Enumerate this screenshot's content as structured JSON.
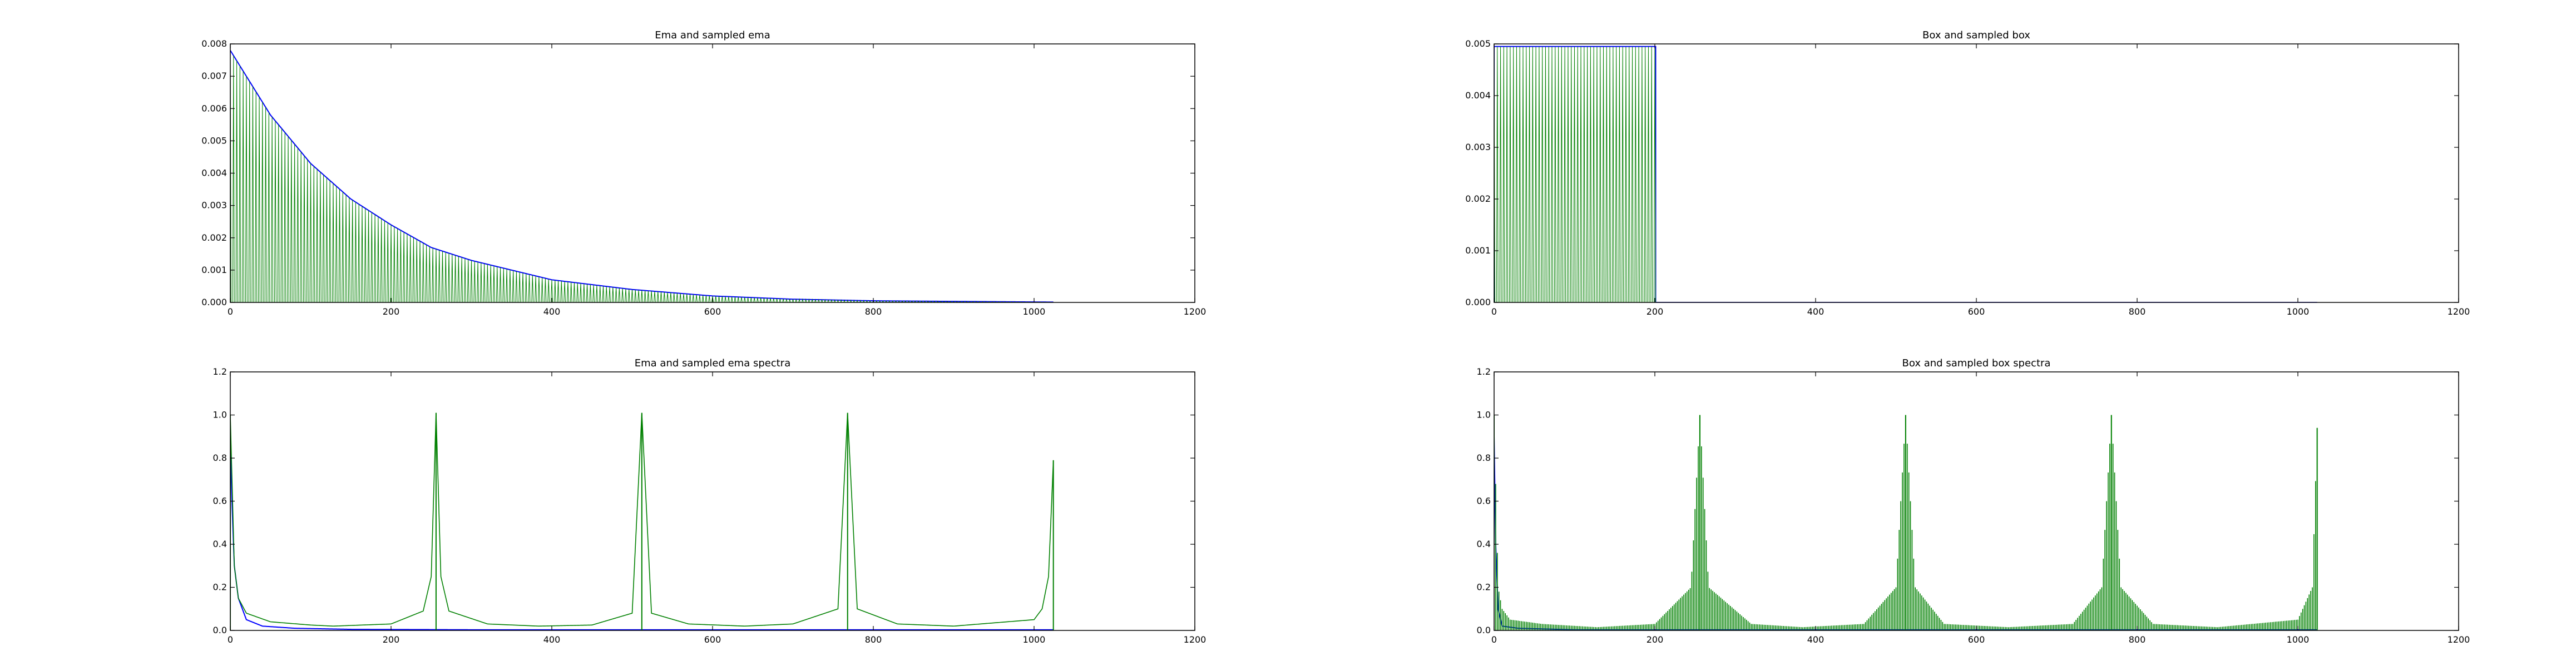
{
  "colors": {
    "sampled": "#008000",
    "continuous": "#0000ff",
    "axes": "#000000",
    "background": "#ffffff"
  },
  "chart_data": [
    {
      "id": "ema",
      "type": "line",
      "title": "Ema and sampled ema",
      "xlabel": "",
      "ylabel": "",
      "xlim": [
        0,
        1200
      ],
      "ylim": [
        0,
        0.008
      ],
      "xticks": [
        "0",
        "200",
        "400",
        "600",
        "800",
        "1000",
        "1200"
      ],
      "yticks": [
        "0.000",
        "0.001",
        "0.002",
        "0.003",
        "0.004",
        "0.005",
        "0.006",
        "0.007",
        "0.008"
      ],
      "grid": false,
      "series": [
        {
          "style": "continuous",
          "color": "#0000ff",
          "x": [
            0,
            50,
            100,
            150,
            200,
            250,
            300,
            400,
            500,
            600,
            700,
            800,
            1024
          ],
          "y": [
            0.0078,
            0.0058,
            0.0043,
            0.0032,
            0.0024,
            0.0017,
            0.0013,
            0.0007,
            0.0004,
            0.0002,
            0.0001,
            5e-05,
            1e-05
          ]
        },
        {
          "style": "sampled",
          "color": "#008000",
          "sample_every": 4,
          "x": [
            0,
            50,
            100,
            150,
            200,
            250,
            300,
            400,
            500,
            600,
            700,
            800,
            1024
          ],
          "y": [
            0.0078,
            0.0058,
            0.0043,
            0.0032,
            0.0024,
            0.0017,
            0.0013,
            0.0007,
            0.0004,
            0.0002,
            0.0001,
            5e-05,
            1e-05
          ]
        }
      ]
    },
    {
      "id": "box",
      "type": "line",
      "title": "Box and sampled box",
      "xlabel": "",
      "ylabel": "",
      "xlim": [
        0,
        1200
      ],
      "ylim": [
        0,
        0.005
      ],
      "xticks": [
        "0",
        "200",
        "400",
        "600",
        "800",
        "1000",
        "1200"
      ],
      "yticks": [
        "0.000",
        "0.001",
        "0.002",
        "0.003",
        "0.004",
        "0.005"
      ],
      "grid": false,
      "series": [
        {
          "style": "continuous",
          "color": "#0000ff",
          "x": [
            0,
            0,
            201,
            201,
            1024
          ],
          "y": [
            0,
            0.00495,
            0.00495,
            0,
            0
          ]
        },
        {
          "style": "sampled",
          "color": "#008000",
          "sample_every": 4,
          "x": [
            0,
            200,
            201,
            1024
          ],
          "y": [
            0.00495,
            0.00495,
            0,
            0
          ]
        }
      ]
    },
    {
      "id": "ema_spectra",
      "type": "line",
      "title": "Ema and sampled ema spectra",
      "xlabel": "",
      "ylabel": "",
      "xlim": [
        0,
        1200
      ],
      "ylim": [
        0,
        1.2
      ],
      "xticks": [
        "0",
        "200",
        "400",
        "600",
        "800",
        "1000",
        "1200"
      ],
      "yticks": [
        "0.0",
        "0.2",
        "0.4",
        "0.6",
        "0.8",
        "1.0",
        "1.2"
      ],
      "grid": false,
      "peaks_at": [
        0,
        256,
        512,
        768,
        1024
      ],
      "peak_heights": [
        1.0,
        1.01,
        1.01,
        1.01,
        0.79
      ],
      "series": [
        {
          "style": "continuous",
          "color": "#0000ff",
          "x": [
            0,
            2,
            5,
            10,
            20,
            40,
            80,
            150,
            300,
            512,
            1024
          ],
          "y": [
            0.9,
            0.6,
            0.3,
            0.15,
            0.05,
            0.02,
            0.01,
            0.005,
            0.003,
            0.003,
            0.003
          ]
        },
        {
          "style": "sampled",
          "color": "#008000",
          "x": [
            0,
            5,
            10,
            20,
            50,
            100,
            128,
            200,
            240,
            250,
            256,
            262,
            272,
            320,
            384,
            450,
            500,
            512,
            524,
            570,
            640,
            700,
            756,
            768,
            780,
            830,
            900,
            1000,
            1010,
            1018,
            1024
          ],
          "y": [
            1.0,
            0.3,
            0.15,
            0.08,
            0.04,
            0.025,
            0.02,
            0.03,
            0.09,
            0.25,
            1.01,
            0.25,
            0.09,
            0.03,
            0.02,
            0.025,
            0.08,
            1.01,
            0.08,
            0.03,
            0.02,
            0.03,
            0.1,
            1.01,
            0.1,
            0.03,
            0.02,
            0.05,
            0.1,
            0.25,
            0.79
          ]
        }
      ]
    },
    {
      "id": "box_spectra",
      "type": "line",
      "title": "Box and sampled box spectra",
      "xlabel": "",
      "ylabel": "",
      "xlim": [
        0,
        1200
      ],
      "ylim": [
        0,
        1.2
      ],
      "xticks": [
        "0",
        "200",
        "400",
        "600",
        "800",
        "1000",
        "1200"
      ],
      "yticks": [
        "0.0",
        "0.2",
        "0.4",
        "0.6",
        "0.8",
        "1.0",
        "1.2"
      ],
      "grid": false,
      "peaks_at": [
        0,
        256,
        512,
        768,
        1024
      ],
      "peak_heights": [
        1.0,
        1.0,
        1.0,
        1.0,
        0.94
      ],
      "series": [
        {
          "style": "continuous",
          "color": "#0000ff",
          "x": [
            0,
            2,
            5,
            10,
            30,
            100,
            1024
          ],
          "y": [
            0.9,
            0.4,
            0.1,
            0.02,
            0.01,
            0.003,
            0.003
          ]
        },
        {
          "style": "sampled",
          "color": "#008000",
          "x": [
            0,
            5,
            10,
            20,
            60,
            128,
            200,
            245,
            256,
            267,
            320,
            384,
            460,
            500,
            512,
            524,
            560,
            640,
            720,
            756,
            768,
            780,
            820,
            900,
            1000,
            1018,
            1024
          ],
          "y": [
            1.0,
            0.2,
            0.1,
            0.05,
            0.03,
            0.015,
            0.03,
            0.2,
            1.0,
            0.2,
            0.03,
            0.015,
            0.03,
            0.2,
            1.0,
            0.2,
            0.03,
            0.015,
            0.03,
            0.2,
            1.0,
            0.2,
            0.03,
            0.015,
            0.05,
            0.2,
            0.94
          ]
        }
      ]
    }
  ]
}
